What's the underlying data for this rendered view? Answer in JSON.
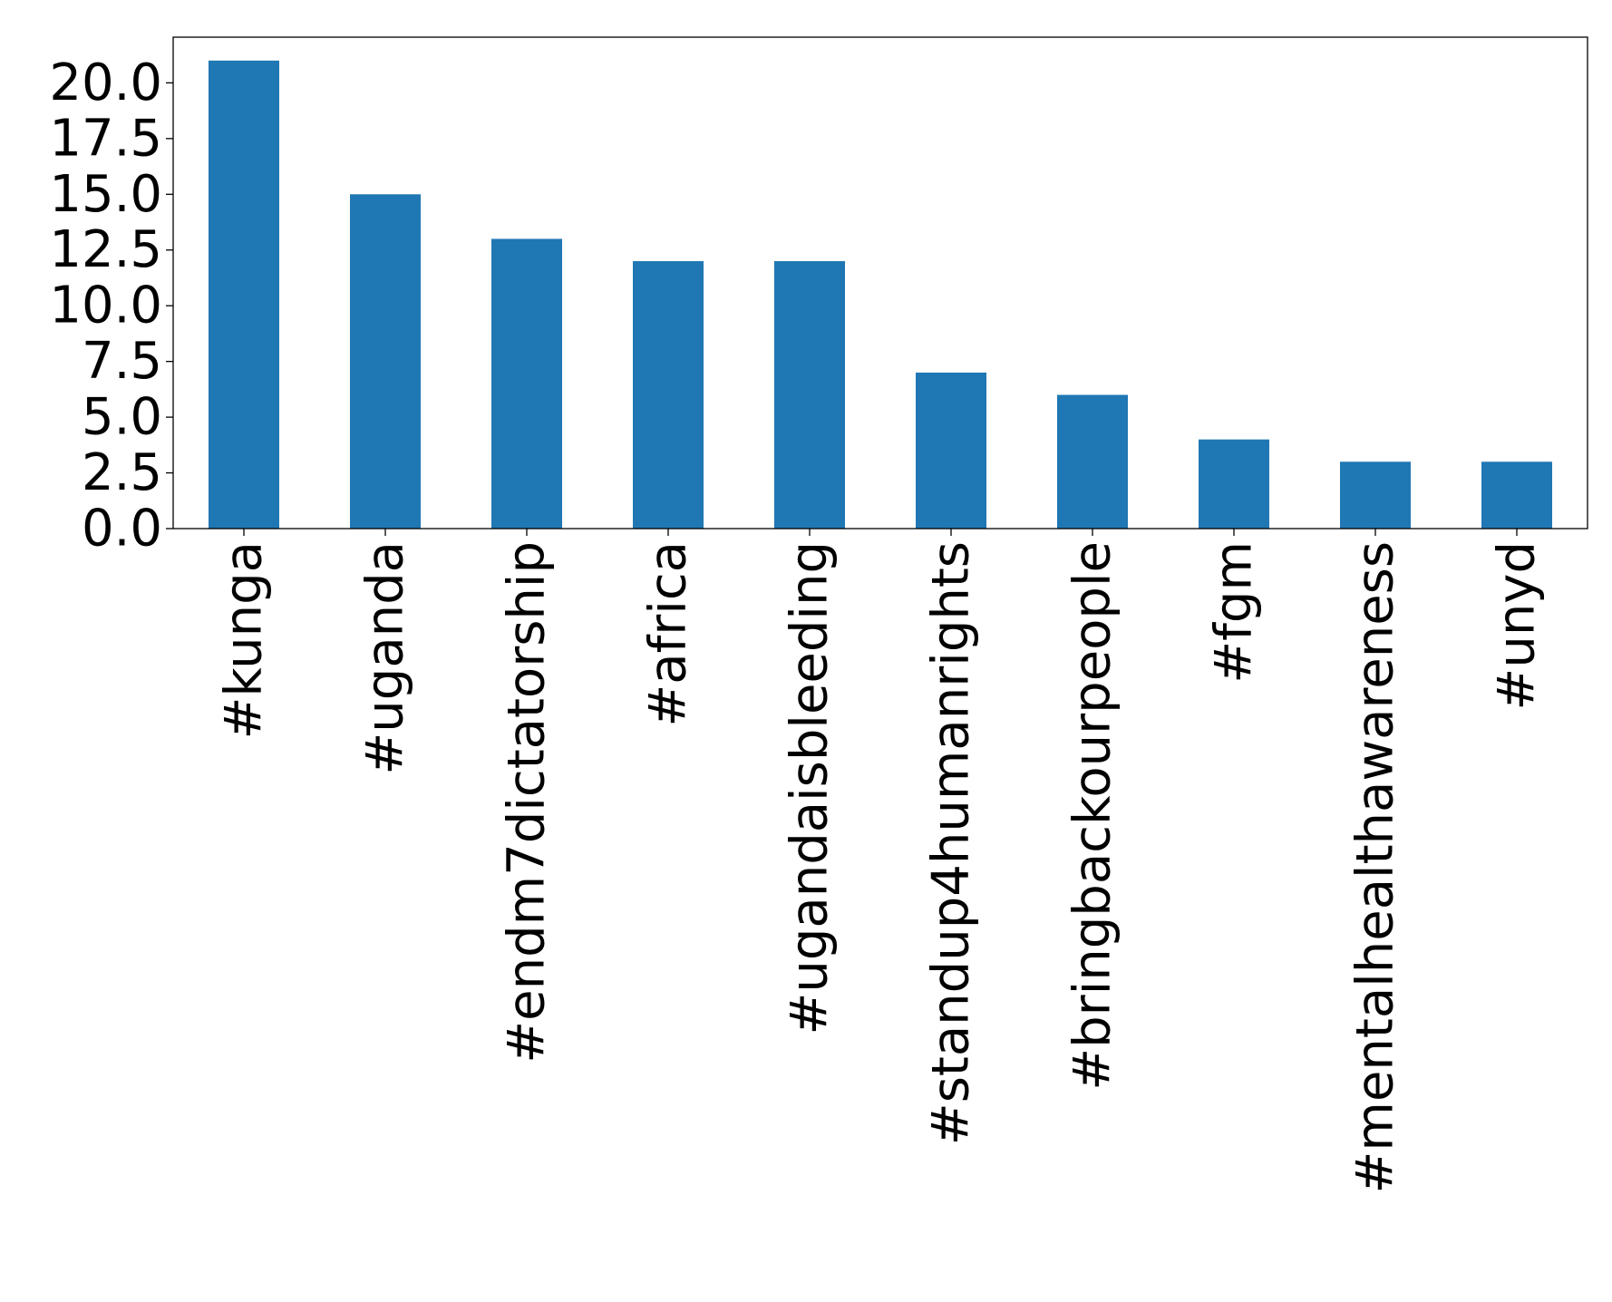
{
  "chart_data": {
    "type": "bar",
    "title": "",
    "xlabel": "",
    "ylabel": "",
    "categories": [
      "#kunga",
      "#uganda",
      "#endm7dictatorship",
      "#africa",
      "#ugandaisbleeding",
      "#standup4humanrights",
      "#bringbackourpeople",
      "#fgm",
      "#mentalhealthawareness",
      "#unyd"
    ],
    "values": [
      21,
      15,
      13,
      12,
      12,
      7,
      6,
      4,
      3,
      3
    ],
    "ylim": [
      0,
      22.05
    ],
    "yticks": [
      0,
      2.5,
      5,
      7.5,
      10,
      12.5,
      15,
      17.5,
      20
    ],
    "ytick_labels": [
      "0.0",
      "2.5",
      "5.0",
      "7.5",
      "10.0",
      "12.5",
      "15.0",
      "17.5",
      "20.0"
    ],
    "bar_color": "#1f77b4",
    "grid": false,
    "legend": "none"
  }
}
